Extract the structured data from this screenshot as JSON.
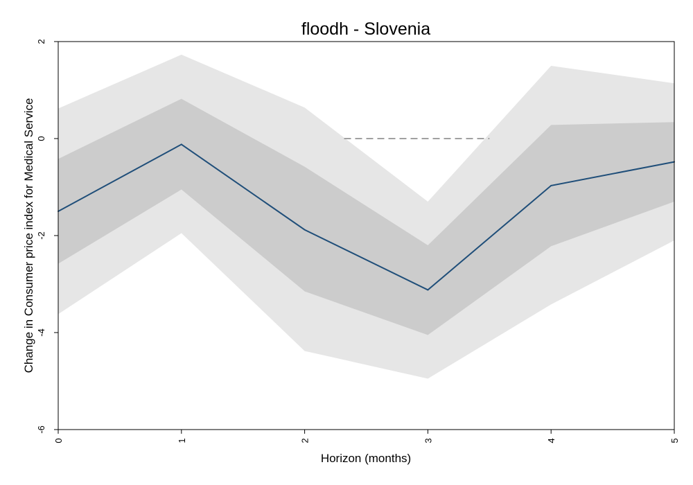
{
  "chart_data": {
    "type": "line",
    "title": "floodh - Slovenia",
    "xlabel": "Horizon (months)",
    "ylabel": "Change in Consumer price index for  Medical Service",
    "x": [
      0,
      1,
      2,
      3,
      4,
      5
    ],
    "x_ticks": [
      "0",
      "1",
      "2",
      "3",
      "4",
      "5"
    ],
    "y_ticks": [
      "-6",
      "-4",
      "-2",
      "0",
      "2"
    ],
    "xlim": [
      0,
      5
    ],
    "ylim": [
      -6,
      2
    ],
    "grid": false,
    "series": [
      {
        "values": [
          -1.5,
          -0.12,
          -1.88,
          -3.12,
          -0.97,
          -0.48
        ]
      }
    ],
    "bands": [
      {
        "lower": [
          -3.62,
          -1.95,
          -4.38,
          -4.95,
          -3.42,
          -2.1
        ],
        "upper": [
          0.62,
          1.73,
          0.64,
          -1.3,
          1.5,
          1.14
        ],
        "fill": "#e6e6e6"
      },
      {
        "lower": [
          -2.58,
          -1.05,
          -3.15,
          -4.05,
          -2.22,
          -1.3
        ],
        "upper": [
          -0.42,
          0.82,
          -0.58,
          -2.2,
          0.28,
          0.34
        ],
        "fill": "#cccccc"
      }
    ],
    "reference_line": {
      "y": 0,
      "x_from": 2.32,
      "x_to": 3.5,
      "style": "dashed",
      "color": "#a0a0a0"
    },
    "line_color": "#1f4e79"
  }
}
